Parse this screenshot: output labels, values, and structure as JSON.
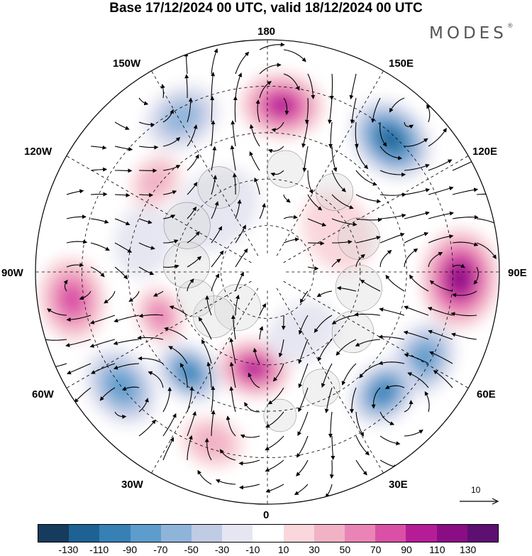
{
  "title": "Base 17/12/2024 00 UTC, valid 18/12/2024 00 UTC",
  "logo": "MODES",
  "logo_mark": "®",
  "longitude_labels": {
    "n180": "180",
    "e150": "150E",
    "e120": "120E",
    "e90": "90E",
    "e60": "60E",
    "e30": "30E",
    "z0": "0",
    "w30": "30W",
    "w60": "60W",
    "w90": "90W",
    "w120": "120W",
    "w150": "150W"
  },
  "reference_vector": "10",
  "colorbar": {
    "colors": [
      "#163b5c",
      "#1d6293",
      "#3680b5",
      "#5d9ccc",
      "#8fb4da",
      "#c0cbe4",
      "#e6e6f2",
      "#ffffff",
      "#f9d7dc",
      "#f1b2c6",
      "#ea84b6",
      "#d950a6",
      "#b51d96",
      "#8a0d85",
      "#5e0f72"
    ],
    "tick_labels": [
      "-130",
      "-110",
      "-90",
      "-70",
      "-50",
      "-30",
      "-10",
      "10",
      "30",
      "50",
      "70",
      "90",
      "110",
      "130"
    ]
  },
  "anomalies": [
    {
      "lon": 175,
      "r": 0.72,
      "value": 115,
      "size": 0.16
    },
    {
      "lon": 137,
      "r": 0.78,
      "value": -130,
      "size": 0.17
    },
    {
      "lon": 88,
      "r": 0.83,
      "value": 120,
      "size": 0.19
    },
    {
      "lon": 61,
      "r": 0.77,
      "value": -80,
      "size": 0.15
    },
    {
      "lon": 44,
      "r": 0.72,
      "value": -100,
      "size": 0.14
    },
    {
      "lon": -8,
      "r": 0.42,
      "value": 100,
      "size": 0.14
    },
    {
      "lon": -18,
      "r": 0.77,
      "value": 55,
      "size": 0.12
    },
    {
      "lon": -38,
      "r": 0.55,
      "value": -100,
      "size": 0.13
    },
    {
      "lon": -52,
      "r": 0.8,
      "value": -80,
      "size": 0.16
    },
    {
      "lon": -68,
      "r": 0.5,
      "value": 60,
      "size": 0.11
    },
    {
      "lon": -82,
      "r": 0.85,
      "value": 80,
      "size": 0.16
    },
    {
      "lon": -104,
      "r": 0.55,
      "value": -35,
      "size": 0.14
    },
    {
      "lon": -129,
      "r": 0.62,
      "value": 50,
      "size": 0.11
    },
    {
      "lon": -151,
      "r": 0.76,
      "value": -70,
      "size": 0.15
    },
    {
      "lon": 30,
      "r": 0.3,
      "value": -15,
      "size": 0.14
    },
    {
      "lon": -140,
      "r": 0.35,
      "value": -20,
      "size": 0.18
    },
    {
      "lon": 120,
      "r": 0.35,
      "value": 20,
      "size": 0.16
    }
  ]
}
